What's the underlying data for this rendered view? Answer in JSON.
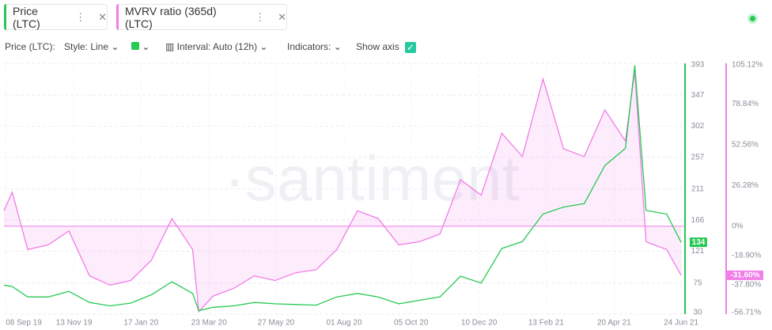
{
  "tabs_toolbar": {
    "style": "Style: Line",
    "interval": "Interval: Auto (12h)",
    "indicators": "Indicators:",
    "show_axis": "Show axis",
    "metric": "Price (LTC):"
  },
  "watermark": "·santiment",
  "chart_data": {
    "type": "line",
    "x": [
      "2019-09-06",
      "2019-09-14",
      "2019-09-29",
      "2019-10-19",
      "2019-11-08",
      "2019-11-28",
      "2019-12-18",
      "2020-01-07",
      "2020-01-27",
      "2020-02-16",
      "2020-03-07",
      "2020-03-13",
      "2020-03-27",
      "2020-04-16",
      "2020-05-06",
      "2020-05-26",
      "2020-06-15",
      "2020-07-05",
      "2020-07-25",
      "2020-08-14",
      "2020-09-03",
      "2020-09-23",
      "2020-10-13",
      "2020-11-02",
      "2020-11-22",
      "2020-12-12",
      "2021-01-01",
      "2021-01-21",
      "2021-02-10",
      "2021-03-02",
      "2021-03-22",
      "2021-04-11",
      "2021-05-01",
      "2021-05-10",
      "2021-05-21",
      "2021-06-10",
      "2021-06-24"
    ],
    "series": [
      {
        "name": "Price (LTC)",
        "color": "#26c953",
        "values": [
          72,
          70,
          55,
          55,
          63,
          47,
          42,
          46,
          58,
          77,
          60,
          35,
          40,
          42,
          47,
          45,
          44,
          43,
          55,
          60,
          55,
          45,
          50,
          55,
          85,
          75,
          125,
          135,
          175,
          185,
          190,
          245,
          270,
          390,
          180,
          175,
          134
        ]
      },
      {
        "name": "MVRV ratio (365d) (LTC)",
        "color": "#f07de8",
        "axis": "y2",
        "last_value_label": "-31.60%",
        "values": [
          10,
          22,
          -15,
          -12,
          -3,
          -32,
          -38,
          -35,
          -22,
          5,
          -15,
          -55,
          -45,
          -40,
          -32,
          -35,
          -30,
          -28,
          -15,
          10,
          5,
          -12,
          -10,
          -5,
          30,
          20,
          60,
          45,
          95,
          50,
          45,
          75,
          55,
          100,
          -10,
          -15,
          -31.6
        ]
      }
    ],
    "xlim": [
      "2019-09-06",
      "2021-06-27"
    ],
    "xticks": [
      {
        "value": "2019-09-08",
        "label": "08 Sep 19"
      },
      {
        "value": "2019-11-13",
        "label": "13 Nov 19"
      },
      {
        "value": "2020-01-17",
        "label": "17 Jan 20"
      },
      {
        "value": "2020-03-23",
        "label": "23 Mar 20"
      },
      {
        "value": "2020-05-27",
        "label": "27 May 20"
      },
      {
        "value": "2020-08-01",
        "label": "01 Aug 20"
      },
      {
        "value": "2020-10-05",
        "label": "05 Oct 20"
      },
      {
        "value": "2020-12-10",
        "label": "10 Dec 20"
      },
      {
        "value": "2021-02-13",
        "label": "13 Feb 21"
      },
      {
        "value": "2021-04-20",
        "label": "20 Apr 21"
      },
      {
        "value": "2021-06-24",
        "label": "24 Jun 21"
      }
    ],
    "ylim": [
      30,
      393
    ],
    "yticks": [
      30,
      75,
      121,
      166,
      211,
      257,
      302,
      347,
      393
    ],
    "y2lim": [
      -56.71,
      105.12
    ],
    "y2ticks": [
      {
        "value": -56.71,
        "label": "-56.71%"
      },
      {
        "value": -37.8,
        "label": "-37.80%"
      },
      {
        "value": -18.9,
        "label": "-18.90%"
      },
      {
        "value": 0,
        "label": "0%"
      },
      {
        "value": 26.28,
        "label": "26.28%"
      },
      {
        "value": 52.56,
        "label": "52.56%"
      },
      {
        "value": 78.84,
        "label": "78.84%"
      },
      {
        "value": 105.12,
        "label": "105.12%"
      }
    ],
    "grid": true
  }
}
